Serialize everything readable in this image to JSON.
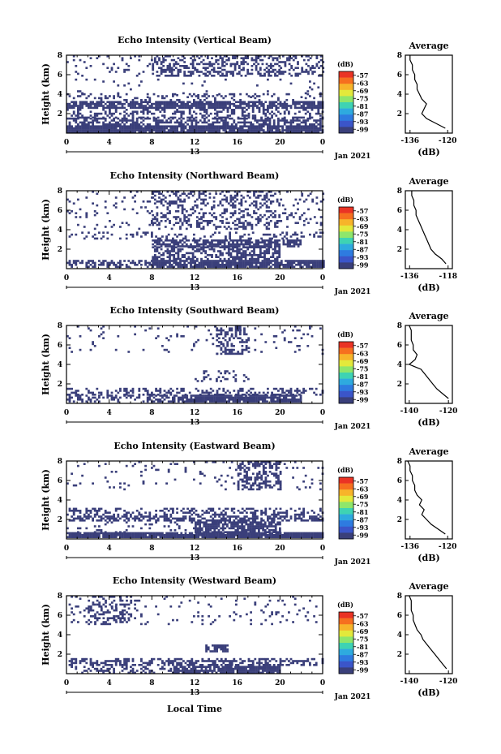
{
  "chart_data": [
    {
      "type": "heatmap",
      "title": "Echo Intensity (Vertical Beam)",
      "ylabel": "Height (km)",
      "ylim": [
        0,
        8
      ],
      "yticks": [
        2,
        4,
        6,
        8
      ],
      "x": [
        0,
        4,
        8,
        12,
        16,
        20,
        0
      ],
      "xlim": [
        0,
        24
      ],
      "date_center": "13",
      "date_label": "Jan 2021",
      "cbar_unit": "(dB)",
      "cbar_levels": [
        -57,
        -63,
        -69,
        -75,
        -81,
        -87,
        -93,
        -99
      ],
      "bands": [
        {
          "h": [
            0.1,
            0.8
          ],
          "x": [
            0,
            24
          ],
          "d": 0.92
        },
        {
          "h": [
            0.8,
            1.6
          ],
          "x": [
            0,
            24
          ],
          "d": 0.55
        },
        {
          "h": [
            1.6,
            2.5
          ],
          "x": [
            0,
            24
          ],
          "d": 0.35
        },
        {
          "h": [
            2.5,
            3.3
          ],
          "x": [
            0,
            24
          ],
          "d": 0.82
        },
        {
          "h": [
            3.3,
            4.1
          ],
          "x": [
            0,
            24
          ],
          "d": 0.22
        },
        {
          "h": [
            5.8,
            8
          ],
          "x": [
            8,
            20
          ],
          "d": 0.45
        },
        {
          "h": [
            5.8,
            8
          ],
          "x": [
            0,
            8
          ],
          "d": 0.1
        },
        {
          "h": [
            5.8,
            8
          ],
          "x": [
            20,
            24
          ],
          "d": 0.25
        },
        {
          "h": [
            3.6,
            5.6
          ],
          "x": [
            0,
            24
          ],
          "d": 0.03
        }
      ],
      "profile": {
        "title": "Average",
        "xlabel": "(dB)",
        "xlim": [
          -138,
          -118
        ],
        "xticks": [
          -136,
          -120
        ],
        "h": [
          0.5,
          1,
          1.5,
          2,
          2.5,
          3,
          3.5,
          4,
          4.5,
          5,
          5.5,
          6,
          6.5,
          7,
          7.5,
          8
        ],
        "db": [
          -121,
          -125,
          -129,
          -131,
          -130,
          -129,
          -131,
          -132,
          -133,
          -133,
          -134,
          -134,
          -135,
          -135,
          -136,
          -136
        ]
      }
    },
    {
      "type": "heatmap",
      "title": "Echo Intensity (Northward Beam)",
      "ylabel": "Height (km)",
      "ylim": [
        0,
        8
      ],
      "yticks": [
        2,
        4,
        6,
        8
      ],
      "x": [
        0,
        4,
        8,
        12,
        16,
        20,
        0
      ],
      "xlim": [
        0,
        24
      ],
      "date_center": "13",
      "date_label": "Jan 2021",
      "cbar_unit": "(dB)",
      "cbar_levels": [
        -57,
        -63,
        -69,
        -75,
        -81,
        -87,
        -93,
        -99
      ],
      "bands": [
        {
          "h": [
            0.1,
            0.9
          ],
          "x": [
            8,
            24
          ],
          "d": 0.9
        },
        {
          "h": [
            0.1,
            0.9
          ],
          "x": [
            0,
            8
          ],
          "d": 0.45
        },
        {
          "h": [
            0.9,
            2.3
          ],
          "x": [
            8,
            20
          ],
          "d": 0.55
        },
        {
          "h": [
            2.3,
            3.0
          ],
          "x": [
            8,
            22
          ],
          "d": 0.75
        },
        {
          "h": [
            3.0,
            3.8
          ],
          "x": [
            0,
            24
          ],
          "d": 0.2
        },
        {
          "h": [
            4.0,
            8
          ],
          "x": [
            8,
            20
          ],
          "d": 0.35
        },
        {
          "h": [
            4.0,
            8
          ],
          "x": [
            0,
            8
          ],
          "d": 0.06
        },
        {
          "h": [
            4.0,
            8
          ],
          "x": [
            20,
            24
          ],
          "d": 0.1
        }
      ],
      "profile": {
        "title": "Average",
        "xlabel": "(dB)",
        "xlim": [
          -138,
          -116
        ],
        "xticks": [
          -136,
          -118
        ],
        "h": [
          0.5,
          1,
          1.5,
          2,
          2.5,
          3,
          3.5,
          4,
          4.5,
          5,
          5.5,
          6,
          6.5,
          7,
          7.5,
          8
        ],
        "db": [
          -119,
          -121,
          -124,
          -126,
          -127,
          -128,
          -129,
          -130,
          -131,
          -132,
          -133,
          -133,
          -134,
          -134,
          -135,
          -135
        ]
      }
    },
    {
      "type": "heatmap",
      "title": "Echo Intensity (Southward Beam)",
      "ylabel": "Height (km)",
      "ylim": [
        0,
        8
      ],
      "yticks": [
        2,
        4,
        6,
        8
      ],
      "x": [
        0,
        4,
        8,
        12,
        16,
        20,
        0
      ],
      "xlim": [
        0,
        24
      ],
      "date_center": "13",
      "date_label": "Jan 2021",
      "cbar_unit": "(dB)",
      "cbar_levels": [
        -57,
        -63,
        -69,
        -75,
        -81,
        -87,
        -93,
        -99
      ],
      "bands": [
        {
          "h": [
            0.1,
            0.9
          ],
          "x": [
            10,
            22
          ],
          "d": 0.9
        },
        {
          "h": [
            0.1,
            0.9
          ],
          "x": [
            0,
            10
          ],
          "d": 0.4
        },
        {
          "h": [
            0.9,
            1.6
          ],
          "x": [
            0,
            24
          ],
          "d": 0.35
        },
        {
          "h": [
            2.2,
            3.4
          ],
          "x": [
            12,
            17
          ],
          "d": 0.25
        },
        {
          "h": [
            5,
            8
          ],
          "x": [
            14,
            17
          ],
          "d": 0.4
        },
        {
          "h": [
            5,
            8
          ],
          "x": [
            0,
            24
          ],
          "d": 0.05
        }
      ],
      "profile": {
        "title": "Average",
        "xlabel": "(dB)",
        "xlim": [
          -142,
          -118
        ],
        "xticks": [
          -140,
          -120
        ],
        "h": [
          0.5,
          1,
          1.5,
          2,
          2.5,
          3,
          3.5,
          4,
          4.5,
          5,
          5.5,
          6,
          6.5,
          7,
          7.5,
          8
        ],
        "db": [
          -120,
          -123,
          -126,
          -128,
          -130,
          -132,
          -134,
          -140,
          -137,
          -136,
          -138,
          -138,
          -139,
          -139,
          -139,
          -140
        ]
      }
    },
    {
      "type": "heatmap",
      "title": "Echo Intensity (Eastward Beam)",
      "ylabel": "Height (km)",
      "ylim": [
        0,
        8
      ],
      "yticks": [
        2,
        4,
        6,
        8
      ],
      "x": [
        0,
        4,
        8,
        12,
        16,
        20,
        0
      ],
      "xlim": [
        0,
        24
      ],
      "date_center": "13",
      "date_label": "Jan 2021",
      "cbar_unit": "(dB)",
      "cbar_levels": [
        -57,
        -63,
        -69,
        -75,
        -81,
        -87,
        -93,
        -99
      ],
      "bands": [
        {
          "h": [
            0.1,
            0.7
          ],
          "x": [
            0,
            24
          ],
          "d": 0.95
        },
        {
          "h": [
            0.7,
            1.8
          ],
          "x": [
            12,
            20
          ],
          "d": 0.8
        },
        {
          "h": [
            0.7,
            1.8
          ],
          "x": [
            0,
            12
          ],
          "d": 0.1
        },
        {
          "h": [
            1.8,
            2.4
          ],
          "x": [
            0,
            24
          ],
          "d": 0.6
        },
        {
          "h": [
            2.4,
            3.2
          ],
          "x": [
            0,
            24
          ],
          "d": 0.35
        },
        {
          "h": [
            5,
            8
          ],
          "x": [
            16,
            20
          ],
          "d": 0.45
        },
        {
          "h": [
            5,
            8
          ],
          "x": [
            0,
            24
          ],
          "d": 0.06
        }
      ],
      "profile": {
        "title": "Average",
        "xlabel": "(dB)",
        "xlim": [
          -138,
          -118
        ],
        "xticks": [
          -136,
          -120
        ],
        "h": [
          0.5,
          1,
          1.5,
          2,
          2.5,
          3,
          3.5,
          4,
          4.5,
          5,
          5.5,
          6,
          6.5,
          7,
          7.5,
          8
        ],
        "db": [
          -121,
          -124,
          -127,
          -129,
          -131,
          -130,
          -132,
          -131,
          -133,
          -134,
          -134,
          -135,
          -135,
          -136,
          -136,
          -137
        ]
      }
    },
    {
      "type": "heatmap",
      "title": "Echo Intensity (Westward Beam)",
      "ylabel": "Height (km)",
      "ylim": [
        0,
        8
      ],
      "yticks": [
        2,
        4,
        6,
        8
      ],
      "x": [
        0,
        4,
        8,
        12,
        16,
        20,
        0
      ],
      "xlim": [
        0,
        24
      ],
      "date_center": "13",
      "date_label": "Jan 2021",
      "cbar_unit": "(dB)",
      "cbar_levels": [
        -57,
        -63,
        -69,
        -75,
        -81,
        -87,
        -93,
        -99
      ],
      "bands": [
        {
          "h": [
            0.1,
            0.8
          ],
          "x": [
            10,
            20
          ],
          "d": 0.92
        },
        {
          "h": [
            0.1,
            0.8
          ],
          "x": [
            0,
            10
          ],
          "d": 0.3
        },
        {
          "h": [
            0.8,
            1.6
          ],
          "x": [
            0,
            24
          ],
          "d": 0.45
        },
        {
          "h": [
            2.2,
            3.0
          ],
          "x": [
            13,
            15
          ],
          "d": 0.7
        },
        {
          "h": [
            5,
            8
          ],
          "x": [
            2,
            6
          ],
          "d": 0.35
        },
        {
          "h": [
            5,
            8
          ],
          "x": [
            0,
            24
          ],
          "d": 0.06
        }
      ],
      "profile": {
        "title": "Average",
        "xlabel": "(dB)",
        "xlim": [
          -142,
          -118
        ],
        "xticks": [
          -140,
          -120
        ],
        "h": [
          0.5,
          1,
          1.5,
          2,
          2.5,
          3,
          3.5,
          4,
          4.5,
          5,
          5.5,
          6,
          6.5,
          7,
          7.5,
          8
        ],
        "db": [
          -121,
          -123,
          -125,
          -127,
          -129,
          -131,
          -133,
          -134,
          -136,
          -137,
          -138,
          -138,
          -139,
          -139,
          -139,
          -140
        ]
      }
    }
  ],
  "xaxis_label": "Local Time",
  "colors": {
    "fill": "#3a3f7a",
    "axis": "#000000",
    "bar": [
      "#ea3324",
      "#f66f1f",
      "#f7b42a",
      "#e3e93b",
      "#8ee66b",
      "#3ed3b3",
      "#2eaadf",
      "#2e7be0",
      "#3b55c9",
      "#3a3f7a"
    ]
  }
}
